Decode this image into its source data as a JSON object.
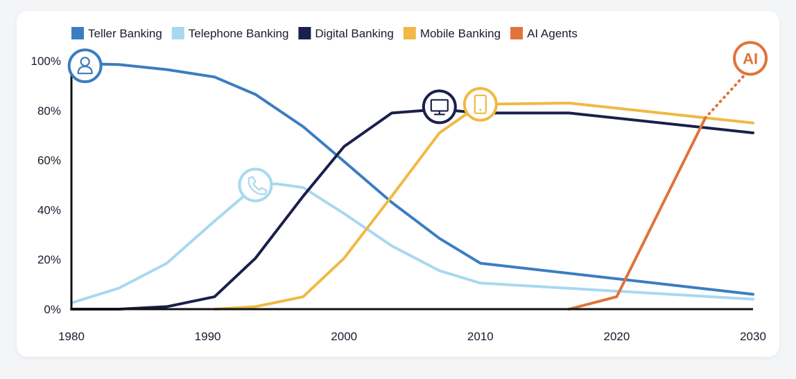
{
  "chart_data": {
    "type": "line",
    "x_range": [
      1980,
      2030
    ],
    "ylim": [
      0,
      100
    ],
    "x_ticks": [
      "1980",
      "1990",
      "2000",
      "2010",
      "2020",
      "2030"
    ],
    "y_ticks": [
      "0%",
      "20%",
      "40%",
      "60%",
      "80%",
      "100%"
    ],
    "grid": false,
    "legend_position": "top-left",
    "series": [
      {
        "name": "Teller Banking",
        "color": "#3b7dc0",
        "icon": "person-icon",
        "icon_at": [
          1981,
          98
        ],
        "points": [
          [
            1980,
            99
          ],
          [
            1983.5,
            98.5
          ],
          [
            1987,
            96.5
          ],
          [
            1990.5,
            93.5
          ],
          [
            1993.5,
            86.5
          ],
          [
            1997,
            73.5
          ],
          [
            2000,
            59.5
          ],
          [
            2003.5,
            43
          ],
          [
            2007,
            28.5
          ],
          [
            2010,
            18.5
          ],
          [
            2030,
            6
          ]
        ]
      },
      {
        "name": "Telephone Banking",
        "color": "#a8d8f0",
        "icon": "phone-icon",
        "icon_at": [
          1993.5,
          50
        ],
        "points": [
          [
            1980,
            2.5
          ],
          [
            1983.5,
            8.5
          ],
          [
            1987,
            18.5
          ],
          [
            1990.5,
            35.5
          ],
          [
            1993.5,
            49.5
          ],
          [
            1995,
            50.5
          ],
          [
            1997,
            49
          ],
          [
            2000,
            38.5
          ],
          [
            2003.5,
            25.5
          ],
          [
            2007,
            15.5
          ],
          [
            2010,
            10.5
          ],
          [
            2030,
            4
          ]
        ]
      },
      {
        "name": "Digital Banking",
        "color": "#1a1f4b",
        "icon": "monitor-icon",
        "icon_at": [
          2007,
          81.5
        ],
        "points": [
          [
            1980,
            0
          ],
          [
            1983.5,
            0
          ],
          [
            1987,
            1
          ],
          [
            1990.5,
            5
          ],
          [
            1993.5,
            20.5
          ],
          [
            1997,
            45.5
          ],
          [
            2000,
            65.5
          ],
          [
            2003.5,
            79
          ],
          [
            2007,
            80.5
          ],
          [
            2010,
            79
          ],
          [
            2016.5,
            79
          ],
          [
            2030,
            71
          ]
        ]
      },
      {
        "name": "Mobile Banking",
        "color": "#f0b944",
        "icon": "mobile-icon",
        "icon_at": [
          2010,
          82.5
        ],
        "points": [
          [
            1990.5,
            0
          ],
          [
            1993.5,
            1
          ],
          [
            1997,
            5
          ],
          [
            2000,
            20.5
          ],
          [
            2003.5,
            45.5
          ],
          [
            2007,
            71
          ],
          [
            2010,
            82.5
          ],
          [
            2016.5,
            83
          ],
          [
            2030,
            75
          ]
        ]
      },
      {
        "name": "AI Agents",
        "color": "#e0733a",
        "icon": "ai-badge",
        "icon_label": "AI",
        "icon_at": [
          2029.8,
          101
        ],
        "points": [
          [
            2016.5,
            0
          ],
          [
            2020,
            5
          ],
          [
            2026.5,
            77
          ]
        ],
        "dotted_points": [
          [
            2026.5,
            77
          ],
          [
            2029.5,
            95
          ]
        ]
      }
    ]
  }
}
